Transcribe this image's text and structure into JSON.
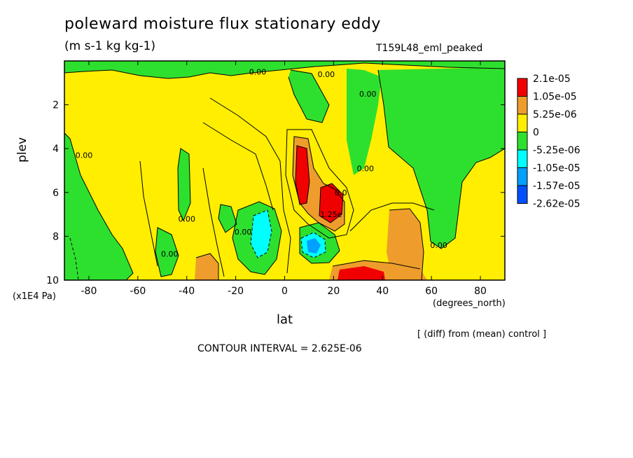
{
  "title": "poleward moisture flux stationary eddy",
  "units": "(m s-1 kg kg-1)",
  "run_label": "T159L48_eml_peaked",
  "note": "[ (diff) from (mean) control ]",
  "contour_interval": "CONTOUR INTERVAL = 2.625E-06",
  "chart_data": {
    "type": "heatmap",
    "xlabel": "lat",
    "x_unit": "(degrees_north)",
    "ylabel": "plev",
    "y_unit": "(x1E4 Pa)",
    "xlim": [
      -90,
      90
    ],
    "ylim": [
      10,
      0
    ],
    "x_ticks": [
      -80,
      -60,
      -40,
      -20,
      0,
      20,
      40,
      60,
      80
    ],
    "x_tick_labels": [
      "-80",
      "-60",
      "-40",
      "-20",
      "0",
      "20",
      "40",
      "60",
      "80"
    ],
    "y_ticks": [
      2,
      4,
      6,
      8,
      10
    ],
    "y_tick_labels": [
      "2",
      "4",
      "6",
      "8",
      "10"
    ],
    "contour_labels": [
      {
        "text": "0.00",
        "lat": -11,
        "plev": 0.5
      },
      {
        "text": "0.00",
        "lat": 17,
        "plev": 0.6
      },
      {
        "text": "0.00",
        "lat": 34,
        "plev": 1.5
      },
      {
        "text": "0.00",
        "lat": -82,
        "plev": 4.3
      },
      {
        "text": "0.00",
        "lat": 33,
        "plev": 4.9
      },
      {
        "text": "0.00",
        "lat": -40,
        "plev": 7.2
      },
      {
        "text": "0.00",
        "lat": -17,
        "plev": 7.8
      },
      {
        "text": "0.00",
        "lat": -47,
        "plev": 8.8
      },
      {
        "text": "0.00",
        "lat": 63,
        "plev": 8.4
      },
      {
        "text": "1.25e",
        "lat": 19,
        "plev": 7.0
      },
      {
        "text": "0.0",
        "lat": 23,
        "plev": 6.0
      }
    ],
    "colorbar": {
      "levels": [
        "2.1e-05",
        "1.05e-05",
        "5.25e-06",
        "0",
        "-5.25e-06",
        "-1.05e-05",
        "-1.57e-05",
        "-2.62e-05"
      ],
      "colors": [
        "#f00000",
        "#ee9d2c",
        "#ffee00",
        "#2ee02e",
        "#00ffff",
        "#00a0ff",
        "#0050ff"
      ]
    },
    "regions": [
      {
        "level": "negative",
        "color": "#2ee02e",
        "lat_range": [
          -90,
          -80
        ],
        "plev_range": [
          3,
          10
        ]
      },
      {
        "level": "negative",
        "color": "#2ee02e",
        "lat_range": [
          -60,
          -50
        ],
        "plev_range": [
          7.5,
          10
        ]
      },
      {
        "level": "negative",
        "color": "#2ee02e",
        "lat_range": [
          -45,
          -40
        ],
        "plev_range": [
          4,
          8
        ]
      },
      {
        "level": "negative",
        "color": "#2ee02e",
        "lat_range": [
          -25,
          0
        ],
        "plev_range": [
          6.5,
          9.5
        ]
      },
      {
        "level": "negative",
        "color": "#2ee02e",
        "lat_range": [
          5,
          30
        ],
        "plev_range": [
          0,
          5
        ]
      },
      {
        "level": "negative",
        "color": "#2ee02e",
        "lat_range": [
          40,
          90
        ],
        "plev_range": [
          0,
          8
        ]
      },
      {
        "level": "negative",
        "color": "#2ee02e",
        "lat_range": [
          5,
          20
        ],
        "plev_range": [
          7.5,
          9
        ]
      },
      {
        "level": "strong negative",
        "color": "#00ffff",
        "lat_range": [
          -15,
          -5
        ],
        "plev_range": [
          7,
          9
        ]
      },
      {
        "level": "strong negative",
        "color": "#00a0ff",
        "lat_range": [
          5,
          15
        ],
        "plev_range": [
          8,
          9
        ]
      },
      {
        "level": "positive",
        "color": "#ee9d2c",
        "lat_range": [
          0,
          10
        ],
        "plev_range": [
          3.5,
          7.5
        ]
      },
      {
        "level": "positive",
        "color": "#ee9d2c",
        "lat_range": [
          10,
          25
        ],
        "plev_range": [
          5.5,
          8
        ]
      },
      {
        "level": "positive",
        "color": "#ee9d2c",
        "lat_range": [
          15,
          45
        ],
        "plev_range": [
          9,
          10
        ]
      },
      {
        "level": "positive",
        "color": "#ee9d2c",
        "lat_range": [
          40,
          60
        ],
        "plev_range": [
          7,
          10
        ]
      },
      {
        "level": "positive",
        "color": "#ee9d2c",
        "lat_range": [
          -40,
          -30
        ],
        "plev_range": [
          9,
          10
        ]
      },
      {
        "level": "strong positive",
        "color": "#f00000",
        "lat_range": [
          3,
          10
        ],
        "plev_range": [
          4,
          7
        ]
      },
      {
        "level": "strong positive",
        "color": "#f00000",
        "lat_range": [
          13,
          22
        ],
        "plev_range": [
          6,
          8
        ]
      },
      {
        "level": "strong positive",
        "color": "#f00000",
        "lat_range": [
          25,
          35
        ],
        "plev_range": [
          9.5,
          10
        ]
      }
    ]
  }
}
